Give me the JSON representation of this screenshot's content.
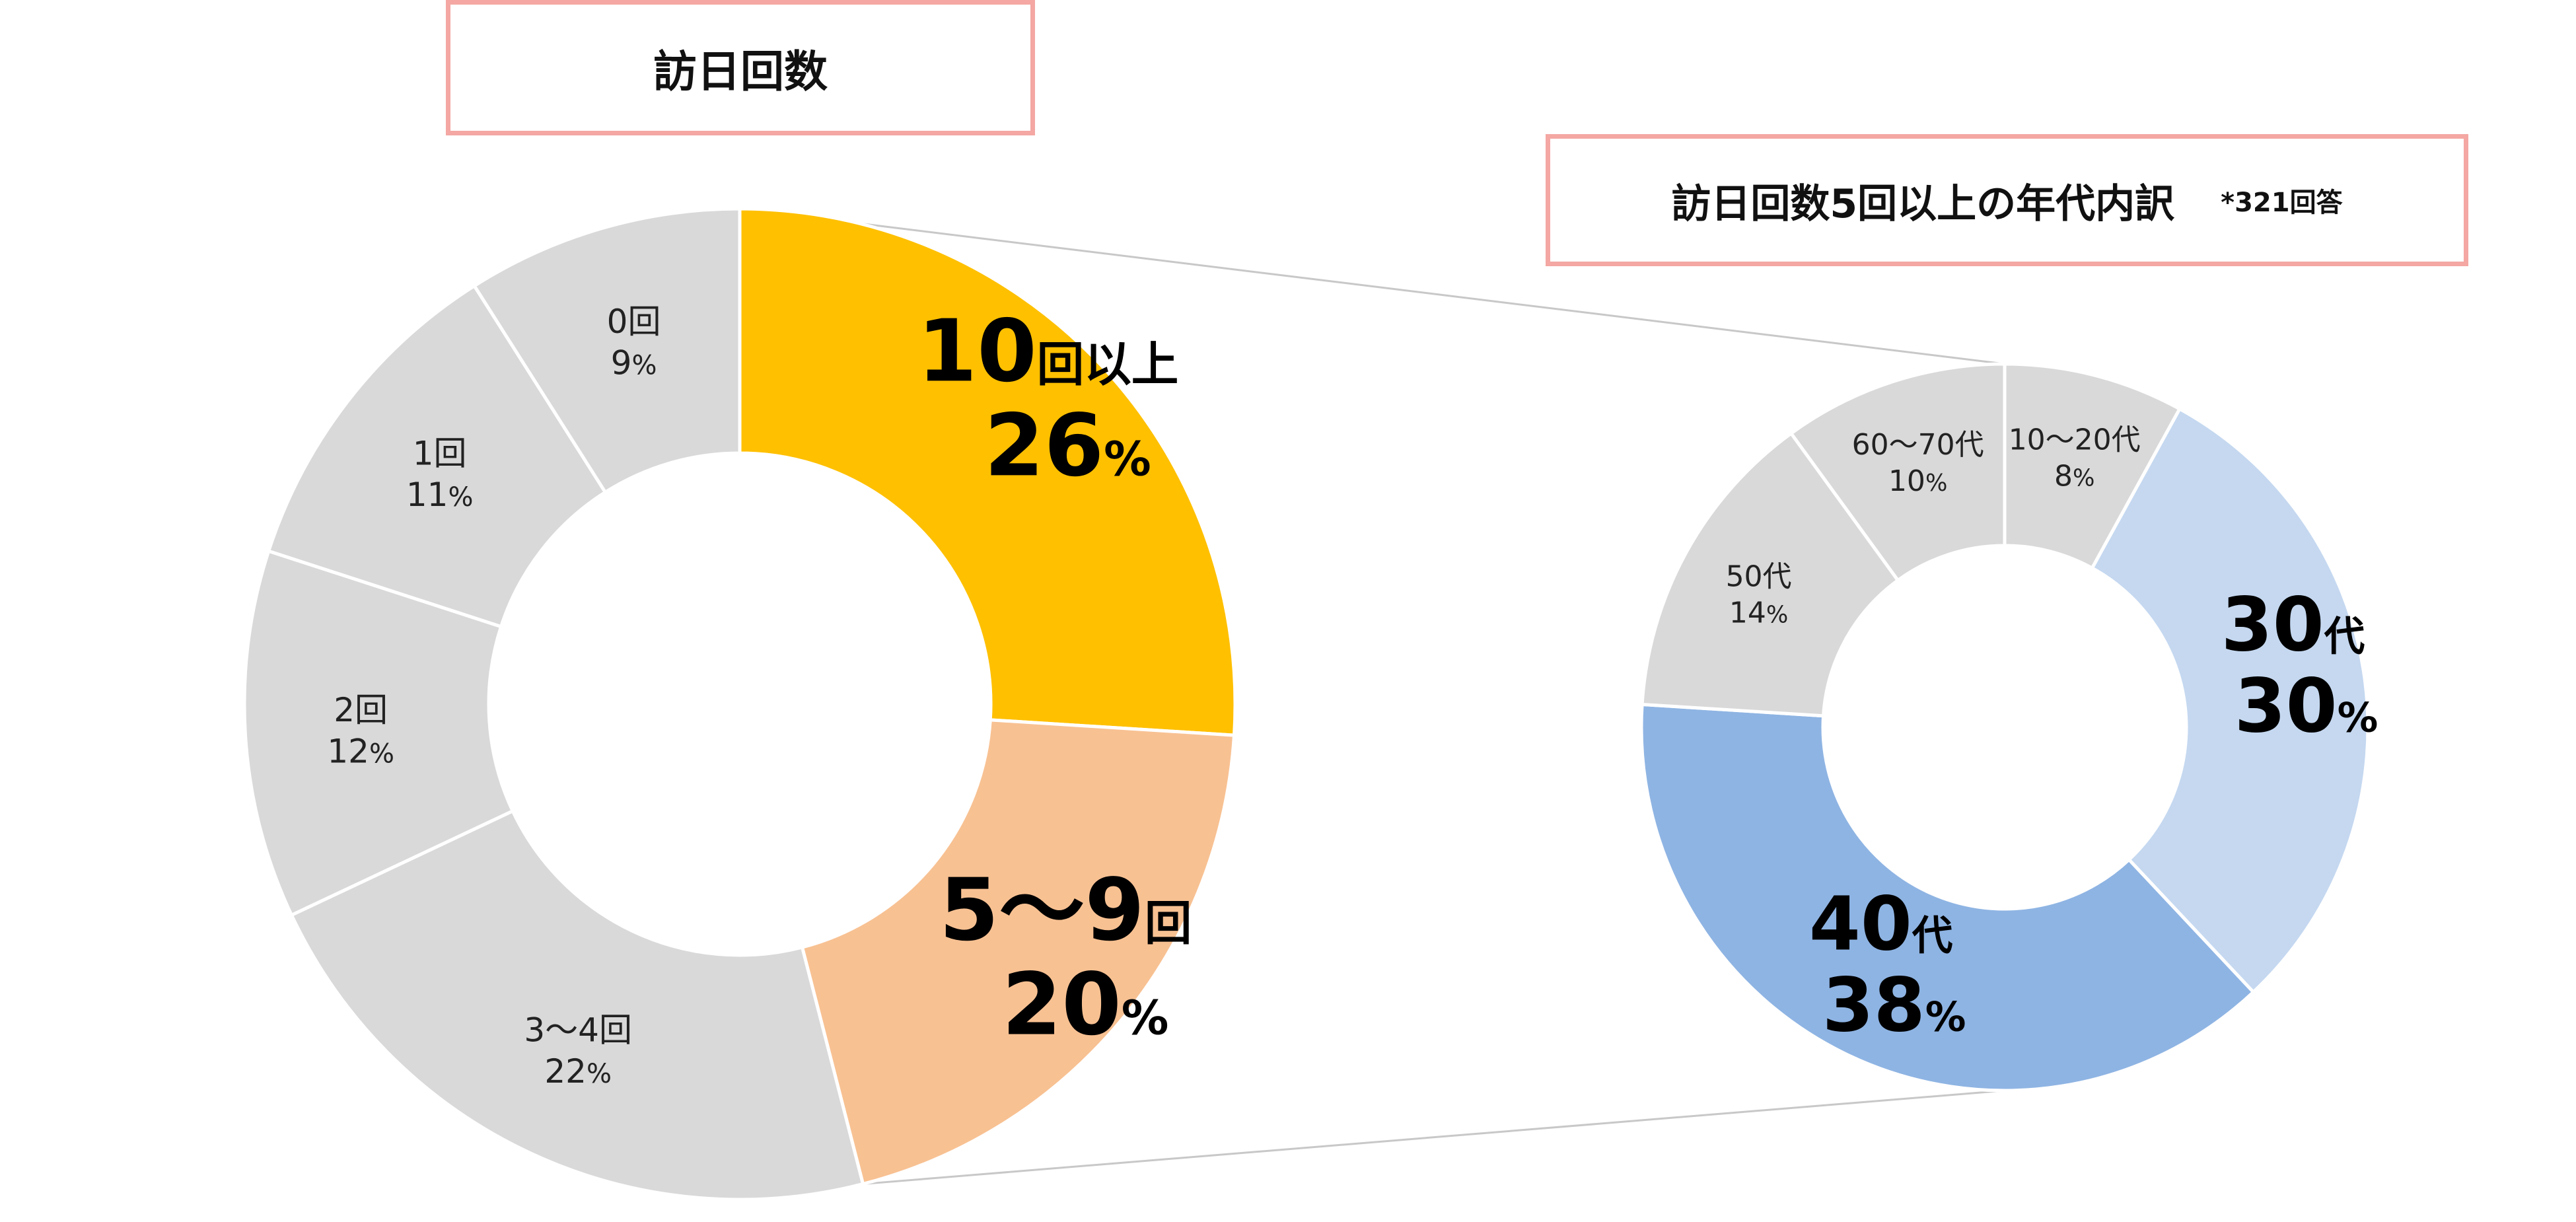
{
  "colors": {
    "gray": "#d9d9d9",
    "gold": "#ffc000",
    "peach": "#f8c192",
    "light_blue": "#c5d8f0",
    "mid_blue": "#8eb4e3",
    "title_border": "#f4a7a3"
  },
  "chart_data": [
    {
      "type": "pie",
      "variant": "donut",
      "title": "訪日回数",
      "slices": [
        {
          "label": "10回以上",
          "value": 26,
          "pct": "26%",
          "color": "#ffc000",
          "emphasis": true
        },
        {
          "label": "5〜9回",
          "value": 20,
          "pct": "20%",
          "color": "#f8c192",
          "emphasis": true
        },
        {
          "label": "3〜4回",
          "value": 22,
          "pct": "22%",
          "color": "#d9d9d9",
          "emphasis": false
        },
        {
          "label": "2回",
          "value": 12,
          "pct": "12%",
          "color": "#d9d9d9",
          "emphasis": false
        },
        {
          "label": "1回",
          "value": 11,
          "pct": "11%",
          "color": "#d9d9d9",
          "emphasis": false
        },
        {
          "label": "0回",
          "value": 9,
          "pct": "9%",
          "color": "#d9d9d9",
          "emphasis": false
        }
      ]
    },
    {
      "type": "pie",
      "variant": "donut",
      "title": "訪日回数5回以上の年代内訳",
      "note": "*321回答",
      "slices": [
        {
          "label": "10〜20代",
          "value": 8,
          "pct": "8%",
          "color": "#d9d9d9",
          "emphasis": false
        },
        {
          "label": "30代",
          "value": 30,
          "pct": "30%",
          "color": "#c5d8f0",
          "emphasis": true
        },
        {
          "label": "40代",
          "value": 38,
          "pct": "38%",
          "color": "#8eb4e3",
          "emphasis": true
        },
        {
          "label": "50代",
          "value": 14,
          "pct": "14%",
          "color": "#d9d9d9",
          "emphasis": false
        },
        {
          "label": "60〜70代",
          "value": 10,
          "pct": "10%",
          "color": "#d9d9d9",
          "emphasis": false
        }
      ]
    }
  ]
}
